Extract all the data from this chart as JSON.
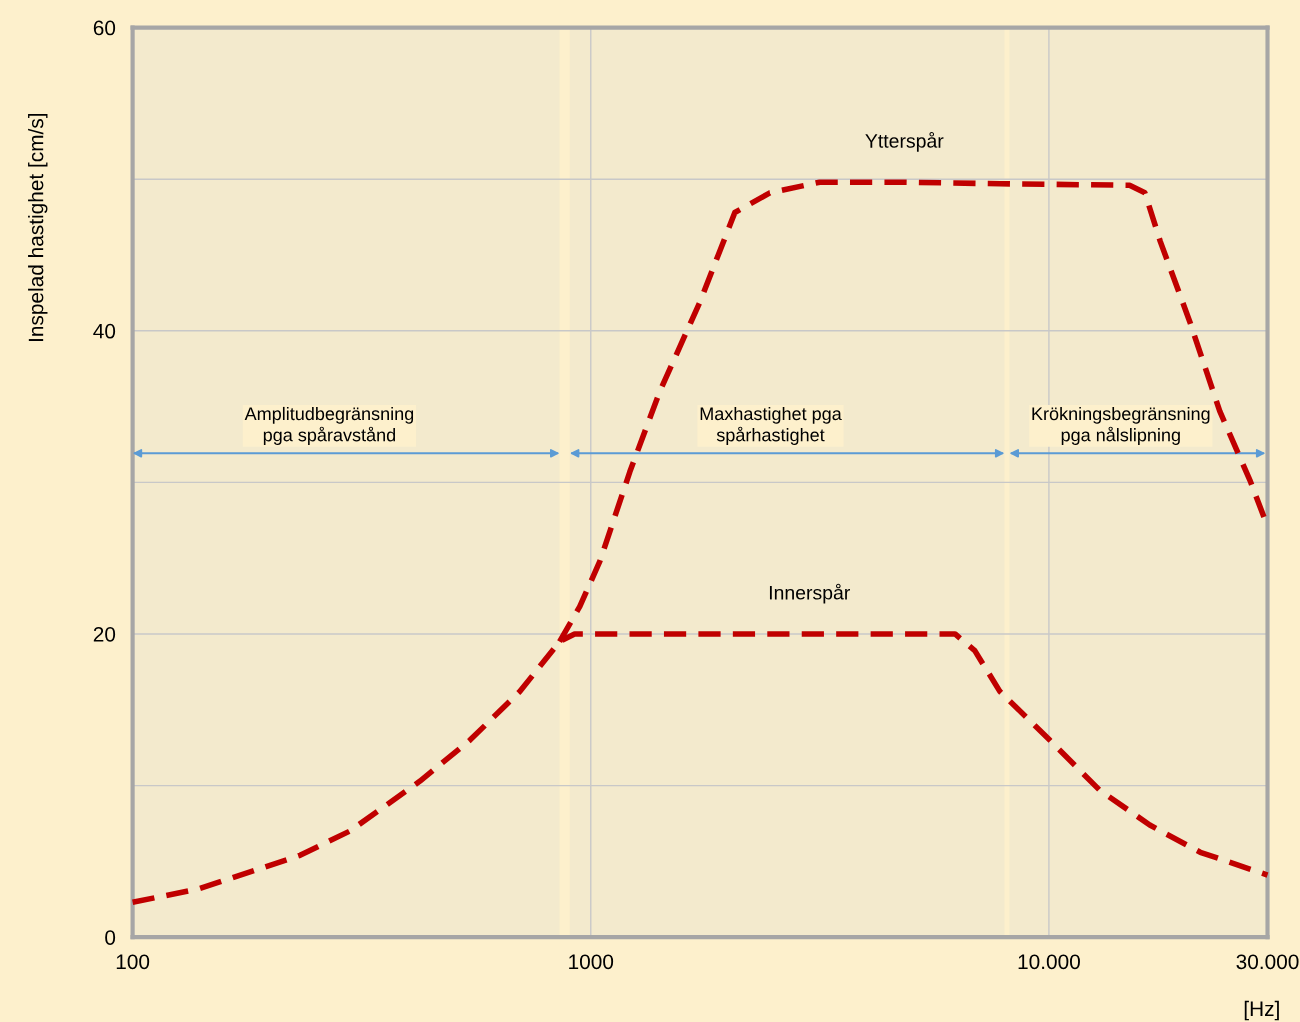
{
  "chart_data": {
    "type": "line",
    "ylabel": "Inspelad hastighet [cm/s]",
    "xlabel": "[Hz]",
    "log": "x",
    "xlim": [
      100,
      30000
    ],
    "xticks": [
      100,
      1000,
      {
        "value": 10000,
        "label": "10.000"
      },
      {
        "value": 30000,
        "label": "30.000"
      }
    ],
    "ylim": [
      0,
      60
    ],
    "yticks": [
      0,
      {
        "value": 10,
        "label": null
      },
      20,
      {
        "value": 30,
        "label": null
      },
      40,
      {
        "value": 50,
        "label": null
      },
      60
    ],
    "grid": true,
    "line_style": "dashed",
    "marker": "none",
    "legend": false,
    "series": [
      {
        "name": "Ytterspår",
        "color": "#c00000",
        "x": [
          855,
          946,
          1047,
          1217,
          1415,
          1731,
          2063,
          2460,
          3160,
          4735,
          7820,
          15000,
          16200,
          17500,
          20300,
          23600,
          27500,
          30000
        ],
        "values": [
          19.5,
          21.8,
          24.8,
          30.7,
          36.0,
          41.9,
          47.8,
          49.1,
          49.8,
          49.8,
          49.7,
          49.6,
          49.1,
          45.9,
          40.6,
          34.7,
          30.1,
          27.1
        ]
      },
      {
        "name": "Innerspår",
        "color": "#c00000",
        "x": [
          100,
          140,
          232,
          298,
          424,
          545,
          700,
          855,
          922,
          6240,
          6890,
          7820,
          10040,
          12900,
          16600,
          21400,
          30000
        ],
        "values": [
          2.3,
          3.2,
          5.4,
          7.0,
          10.3,
          13.0,
          16.2,
          19.5,
          20.0,
          20.0,
          18.9,
          16.2,
          13.0,
          9.7,
          7.4,
          5.6,
          4.1
        ]
      }
    ],
    "bands": [
      {
        "axis": "x",
        "from": 100,
        "to": 855,
        "label": "Amplitudbegränsning\npga spåravstånd",
        "color": "#5b9bd5"
      },
      {
        "axis": "x",
        "from": 900,
        "to": 8000,
        "label": "Maxhastighet pga\nspårhastighet",
        "color": "#5b9bd5"
      },
      {
        "axis": "x",
        "from": 8200,
        "to": 29700,
        "label": "Krökningsbegränsning\npga nålslipning",
        "color": "#5b9bd5"
      }
    ]
  }
}
